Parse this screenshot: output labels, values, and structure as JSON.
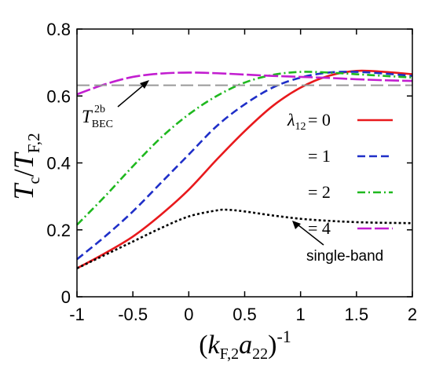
{
  "chart_data": {
    "type": "line",
    "xlim": [
      -1,
      2
    ],
    "ylim": [
      0,
      0.8
    ],
    "xticks": [
      "-1",
      "-0.5",
      "0",
      "0.5",
      "1",
      "1.5",
      "2"
    ],
    "yticks": [
      "0",
      "0.2",
      "0.4",
      "0.6",
      "0.8"
    ],
    "xlabel": {
      "open": "(",
      "k": "k",
      "ksub": "F,2",
      "a": "a",
      "asub": "22",
      "close": ")",
      "sup": "-1"
    },
    "ylabel": {
      "t1": "T",
      "t1sub": "c",
      "slash": "/",
      "t2": "T",
      "t2sub": "F,2"
    },
    "legend": {
      "lambda": "λ",
      "lambda_sub": "12",
      "labels": [
        "= 0",
        "= 1",
        "= 2",
        "= 4"
      ]
    },
    "reference_line": {
      "y": 0.632,
      "label_T": "T",
      "label_sub": "BEC",
      "label_sup": "2b",
      "color": "#999999"
    },
    "annotation": {
      "text": "single-band",
      "target": [
        1.0,
        0.235
      ]
    },
    "series": [
      {
        "color": "#e8191c",
        "dash": "solid",
        "x": [
          -1.0,
          -0.75,
          -0.5,
          -0.25,
          0.0,
          0.25,
          0.5,
          0.75,
          1.0,
          1.25,
          1.5,
          1.75,
          2.0
        ],
        "y": [
          0.085,
          0.13,
          0.18,
          0.245,
          0.32,
          0.41,
          0.495,
          0.57,
          0.625,
          0.66,
          0.675,
          0.672,
          0.665
        ]
      },
      {
        "color": "#1f2fc8",
        "dash": "10,5",
        "x": [
          -1.0,
          -0.75,
          -0.5,
          -0.25,
          0.0,
          0.25,
          0.5,
          0.75,
          1.0,
          1.25,
          1.5,
          1.75,
          2.0
        ],
        "y": [
          0.112,
          0.18,
          0.255,
          0.34,
          0.425,
          0.51,
          0.575,
          0.625,
          0.655,
          0.67,
          0.672,
          0.667,
          0.66
        ]
      },
      {
        "color": "#1fb81f",
        "dash": "10,4,2,4",
        "x": [
          -1.0,
          -0.75,
          -0.5,
          -0.25,
          0.0,
          0.25,
          0.5,
          0.75,
          1.0,
          1.25,
          1.5,
          1.75,
          2.0
        ],
        "y": [
          0.215,
          0.3,
          0.39,
          0.475,
          0.545,
          0.6,
          0.64,
          0.663,
          0.672,
          0.67,
          0.665,
          0.66,
          0.655
        ]
      },
      {
        "color": "#c21ed0",
        "dash": "18,4",
        "x": [
          -1.0,
          -0.75,
          -0.5,
          -0.25,
          0.0,
          0.25,
          0.5,
          0.75,
          1.0,
          1.25,
          1.5,
          1.75,
          2.0
        ],
        "y": [
          0.605,
          0.635,
          0.657,
          0.667,
          0.67,
          0.668,
          0.664,
          0.66,
          0.657,
          0.654,
          0.65,
          0.647,
          0.645
        ]
      },
      {
        "color": "#000000",
        "dash": "3,3",
        "x": [
          -1.0,
          -0.75,
          -0.5,
          -0.25,
          0.0,
          0.25,
          0.35,
          0.5,
          0.75,
          1.0,
          1.25,
          1.5,
          1.75,
          2.0
        ],
        "y": [
          0.085,
          0.125,
          0.165,
          0.205,
          0.24,
          0.258,
          0.26,
          0.255,
          0.243,
          0.233,
          0.227,
          0.223,
          0.221,
          0.22
        ]
      }
    ]
  }
}
